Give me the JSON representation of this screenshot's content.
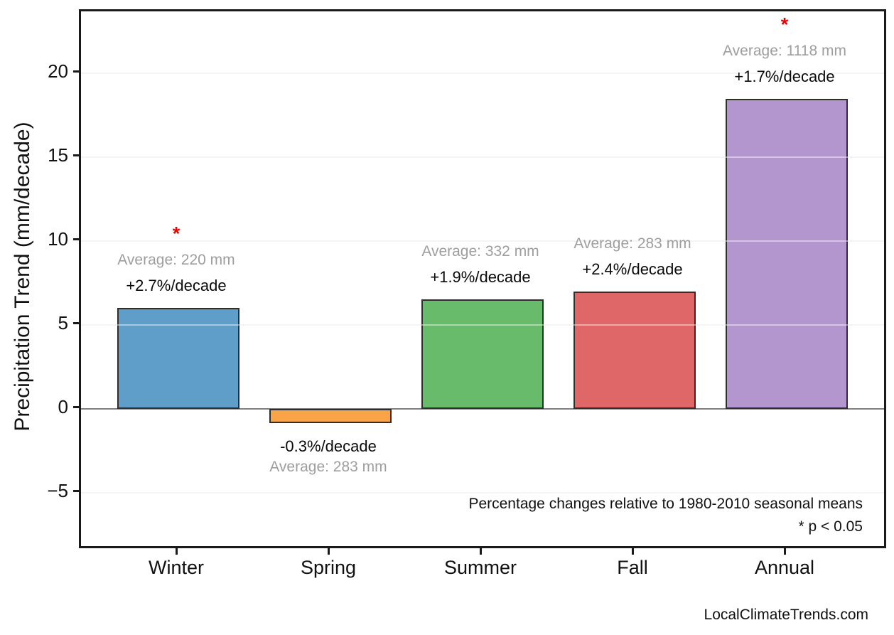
{
  "watermark": "LocalClimateTrends.com",
  "chart_data": {
    "type": "bar",
    "title": "",
    "xlabel": "",
    "ylabel": "Precipitation Trend (mm/decade)",
    "categories": [
      "Winter",
      "Spring",
      "Summer",
      "Fall",
      "Annual"
    ],
    "values": [
      6.0,
      -0.85,
      6.5,
      7.0,
      18.5
    ],
    "bar_colors": [
      "#5f9ec9",
      "#f9a449",
      "#69bb6c",
      "#e06767",
      "#b296cd"
    ],
    "bar_edge_color": "#2e2e2e",
    "annotations": [
      {
        "average": "Average: 220 mm",
        "trend": "+2.7%/decade",
        "significant": true
      },
      {
        "average": "Average: 283 mm",
        "trend": "-0.3%/decade",
        "significant": false
      },
      {
        "average": "Average: 332 mm",
        "trend": "+1.9%/decade",
        "significant": false
      },
      {
        "average": "Average: 283 mm",
        "trend": "+2.4%/decade",
        "significant": false
      },
      {
        "average": "Average: 1118 mm",
        "trend": "+1.7%/decade",
        "significant": true
      }
    ],
    "y_ticks": [
      20,
      15,
      10,
      5,
      0,
      -5
    ],
    "y_tick_labels": [
      "20",
      "15",
      "10",
      "5",
      "0",
      "−5"
    ],
    "ylim": [
      -8.2,
      23.7
    ],
    "grid": true,
    "zero_line": true,
    "legend": null,
    "notes": [
      "Percentage changes relative to 1980-2010 seasonal means",
      "* p < 0.05"
    ],
    "significance_marker": "*",
    "significance_color": "#ee0000",
    "average_label_color": "#9e9e9e",
    "trend_label_color": "#0a0a0a"
  }
}
